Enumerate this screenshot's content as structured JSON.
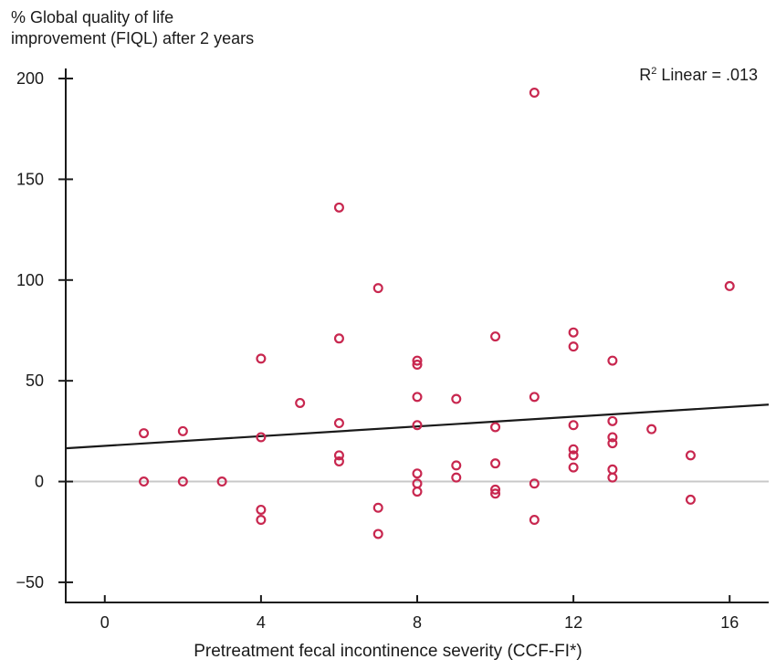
{
  "chart_data": {
    "type": "scatter",
    "ylabel_line1": "% Global quality of life",
    "ylabel_line2": "improvement (FIQL) after 2 years",
    "xlabel": "Pretreatment fecal incontinence severity (CCF-FI*)",
    "annotation": {
      "prefix": "R",
      "sup": "2",
      "suffix": " Linear = .013"
    },
    "xlim": [
      -1,
      17
    ],
    "ylim": [
      -60,
      205
    ],
    "xticks": [
      0,
      4,
      8,
      12,
      16
    ],
    "yticks": [
      -50,
      0,
      50,
      100,
      150,
      200
    ],
    "grid": false,
    "reference_line_y": 0,
    "regression_line": {
      "x": [
        -1,
        17
      ],
      "y": [
        16.5,
        38.2
      ]
    },
    "marker_color": "#c8274f",
    "line_color": "#1a1a1a",
    "reference_color": "#c8c8c8",
    "points": [
      [
        1,
        24
      ],
      [
        1,
        0
      ],
      [
        2,
        25
      ],
      [
        2,
        0
      ],
      [
        3,
        0
      ],
      [
        4,
        61
      ],
      [
        4,
        22
      ],
      [
        4,
        -14
      ],
      [
        4,
        -19
      ],
      [
        5,
        39
      ],
      [
        6,
        136
      ],
      [
        6,
        71
      ],
      [
        6,
        29
      ],
      [
        6,
        13
      ],
      [
        6,
        10
      ],
      [
        7,
        96
      ],
      [
        7,
        -13
      ],
      [
        7,
        -26
      ],
      [
        8,
        60
      ],
      [
        8,
        58
      ],
      [
        8,
        42
      ],
      [
        8,
        28
      ],
      [
        8,
        4
      ],
      [
        8,
        -1
      ],
      [
        8,
        -5
      ],
      [
        9,
        41
      ],
      [
        9,
        8
      ],
      [
        9,
        2
      ],
      [
        10,
        72
      ],
      [
        10,
        27
      ],
      [
        10,
        9
      ],
      [
        10,
        -4
      ],
      [
        10,
        -6
      ],
      [
        11,
        193
      ],
      [
        11,
        42
      ],
      [
        11,
        -1
      ],
      [
        11,
        -19
      ],
      [
        12,
        74
      ],
      [
        12,
        67
      ],
      [
        12,
        28
      ],
      [
        12,
        16
      ],
      [
        12,
        13
      ],
      [
        12,
        7
      ],
      [
        13,
        60
      ],
      [
        13,
        30
      ],
      [
        13,
        22
      ],
      [
        13,
        19
      ],
      [
        13,
        6
      ],
      [
        13,
        2
      ],
      [
        14,
        26
      ],
      [
        15,
        13
      ],
      [
        15,
        -9
      ],
      [
        16,
        97
      ]
    ]
  }
}
